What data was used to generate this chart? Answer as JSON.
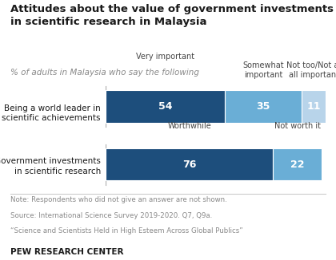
{
  "title": "Attitudes about the value of government investments\nin scientific research in Malaysia",
  "subtitle": "% of adults in Malaysia who say the following",
  "bars": [
    {
      "label": "Being a world leader in\nscientific achievements",
      "segments": [
        54,
        35,
        11
      ],
      "colors": [
        "#1d4e7c",
        "#6aaed6",
        "#b8d4ea"
      ]
    },
    {
      "label": "Government investments\nin scientific research",
      "segments": [
        76,
        22,
        0
      ],
      "colors": [
        "#1d4e7c",
        "#6aaed6",
        "#b8d4ea"
      ]
    }
  ],
  "row1_headers": [
    "Very important",
    "Somewhat\nimportant",
    "Not too/Not at\nall important"
  ],
  "row2_headers": [
    "Worthwhile",
    "Not worth it"
  ],
  "note_line1": "Note: Respondents who did not give an answer are not shown.",
  "note_line2": "Source: International Science Survey 2019-2020. Q7, Q9a.",
  "note_line3": "“Science and Scientists Held in High Esteem Across Global Publics”",
  "footer": "PEW RESEARCH CENTER",
  "title_color": "#1a1a1a",
  "subtitle_color": "#888888",
  "header_color": "#444444",
  "note_color": "#888888",
  "footer_color": "#1a1a1a"
}
